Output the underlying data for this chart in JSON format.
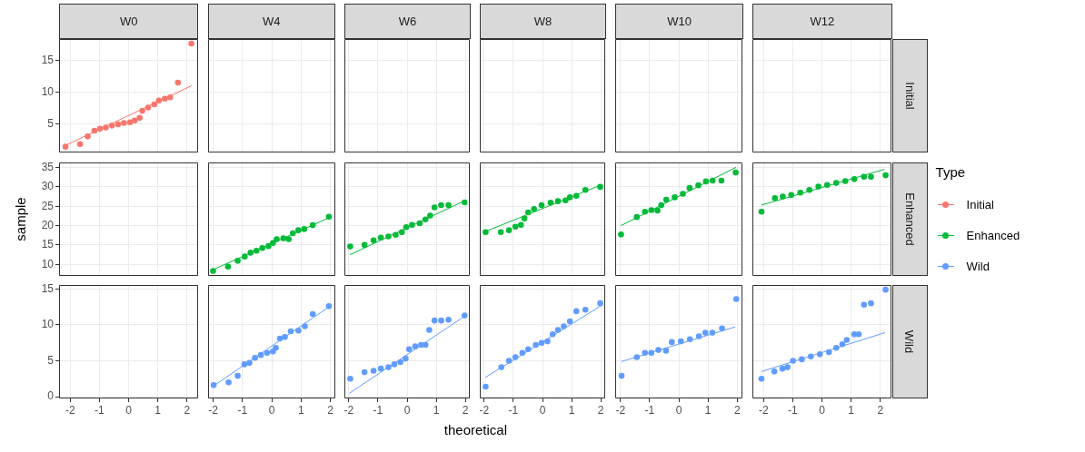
{
  "chart_data": [
    {
      "type": "scatter",
      "title": "W0",
      "xlim": [
        -2.38,
        2.38
      ],
      "xticks": [
        -2,
        -1,
        0,
        1,
        2
      ],
      "ylim": [
        0.6,
        18.3
      ],
      "yticks": [
        5,
        10,
        15
      ],
      "tick_labels": "y",
      "grid": true,
      "marker": "circle",
      "series": [
        {
          "name": "Initial",
          "color": "#f8766d",
          "x": [
            -2.16,
            -1.66,
            -1.4,
            -1.17,
            -0.98,
            -0.78,
            -0.57,
            -0.36,
            -0.16,
            0.05,
            0.21,
            0.38,
            0.47,
            0.67,
            0.88,
            1.04,
            1.24,
            1.42,
            1.69,
            2.15
          ],
          "values": [
            1.5,
            1.9,
            3.1,
            4.0,
            4.3,
            4.5,
            4.8,
            5.0,
            5.2,
            5.3,
            5.6,
            6.0,
            7.1,
            7.6,
            8.1,
            8.7,
            9.0,
            9.2,
            11.5,
            17.6
          ]
        },
        {
          "type": "line",
          "marker": "none",
          "color": "#f8766d",
          "x": [
            -2.16,
            2.15
          ],
          "values": [
            1.7,
            11.0
          ]
        }
      ]
    },
    {
      "type": "scatter",
      "title": "W4",
      "xlim": [
        -2.17,
        2.17
      ],
      "xticks": [
        -2,
        -1,
        0,
        1,
        2
      ],
      "ylim": [
        0.6,
        18.3
      ],
      "yticks": [
        5,
        10,
        15
      ],
      "tick_labels": false,
      "grid": true
    },
    {
      "type": "scatter",
      "title": "W6",
      "xlim": [
        -2.15,
        2.15
      ],
      "xticks": [
        -2,
        -1,
        0,
        1,
        2
      ],
      "ylim": [
        0.6,
        18.3
      ],
      "yticks": [
        5,
        10,
        15
      ],
      "tick_labels": false,
      "grid": true
    },
    {
      "type": "scatter",
      "title": "W8",
      "xlim": [
        -2.15,
        2.15
      ],
      "xticks": [
        -2,
        -1,
        0,
        1,
        2
      ],
      "ylim": [
        0.6,
        18.3
      ],
      "yticks": [
        5,
        10,
        15
      ],
      "tick_labels": false,
      "grid": true
    },
    {
      "type": "scatter",
      "title": "W10",
      "xlim": [
        -2.18,
        2.18
      ],
      "xticks": [
        -2,
        -1,
        0,
        1,
        2
      ],
      "ylim": [
        0.6,
        18.3
      ],
      "yticks": [
        5,
        10,
        15
      ],
      "tick_labels": false,
      "grid": true
    },
    {
      "type": "scatter",
      "title": "W12",
      "y2label": "Initial",
      "xlim": [
        -2.38,
        2.38
      ],
      "xticks": [
        -2,
        -1,
        0,
        1,
        2
      ],
      "ylim": [
        0.6,
        18.3
      ],
      "yticks": [
        5,
        10,
        15
      ],
      "tick_labels": false,
      "grid": true
    },
    {
      "type": "scatter",
      "ylabel": "sample",
      "xlim": [
        -2.38,
        2.38
      ],
      "xticks": [
        -2,
        -1,
        0,
        1,
        2
      ],
      "ylim": [
        7.0,
        36.3
      ],
      "yticks": [
        10,
        15,
        20,
        25,
        30,
        35
      ],
      "tick_labels": "y",
      "grid": true
    },
    {
      "type": "scatter",
      "xlim": [
        -2.17,
        2.17
      ],
      "xticks": [
        -2,
        -1,
        0,
        1,
        2
      ],
      "ylim": [
        7.0,
        36.3
      ],
      "yticks": [
        10,
        15,
        20,
        25,
        30,
        35
      ],
      "tick_labels": false,
      "grid": true,
      "marker": "circle",
      "series": [
        {
          "name": "Enhanced",
          "color": "#00ba38",
          "x": [
            -2.0,
            -1.49,
            -1.16,
            -0.92,
            -0.72,
            -0.52,
            -0.32,
            -0.11,
            0.04,
            0.17,
            0.4,
            0.58,
            0.72,
            0.91,
            1.11,
            1.4,
            1.95
          ],
          "values": [
            8.3,
            9.4,
            10.9,
            12.0,
            13.0,
            13.5,
            14.2,
            14.7,
            15.5,
            16.5,
            16.7,
            16.5,
            18.0,
            18.8,
            19.1,
            20.1,
            22.3
          ]
        },
        {
          "type": "line",
          "marker": "none",
          "color": "#00ba38",
          "x": [
            -2.0,
            1.95
          ],
          "values": [
            8.6,
            22.0
          ]
        }
      ]
    },
    {
      "type": "scatter",
      "xlim": [
        -2.15,
        2.15
      ],
      "xticks": [
        -2,
        -1,
        0,
        1,
        2
      ],
      "ylim": [
        7.0,
        36.3
      ],
      "yticks": [
        10,
        15,
        20,
        25,
        30,
        35
      ],
      "tick_labels": false,
      "grid": true,
      "marker": "circle",
      "series": [
        {
          "color": "#00ba38",
          "x": [
            -1.95,
            -1.46,
            -1.15,
            -0.9,
            -0.64,
            -0.39,
            -0.18,
            -0.03,
            0.17,
            0.43,
            0.63,
            0.79,
            0.94,
            1.17,
            1.42,
            1.97
          ],
          "values": [
            14.6,
            15.0,
            16.2,
            16.9,
            17.2,
            17.6,
            18.3,
            19.6,
            20.2,
            20.6,
            21.6,
            22.6,
            24.7,
            25.3,
            25.3,
            26.0
          ]
        },
        {
          "type": "line",
          "marker": "none",
          "color": "#00ba38",
          "x": [
            -1.95,
            1.97
          ],
          "values": [
            12.5,
            26.4
          ]
        }
      ]
    },
    {
      "type": "scatter",
      "xlim": [
        -2.15,
        2.15
      ],
      "xticks": [
        -2,
        -1,
        0,
        1,
        2
      ],
      "ylim": [
        7.0,
        36.3
      ],
      "yticks": [
        10,
        15,
        20,
        25,
        30,
        35
      ],
      "tick_labels": false,
      "grid": true,
      "marker": "circle",
      "series": [
        {
          "color": "#00ba38",
          "x": [
            -1.95,
            -1.43,
            -1.15,
            -0.93,
            -0.74,
            -0.62,
            -0.49,
            -0.29,
            -0.03,
            0.28,
            0.53,
            0.79,
            0.94,
            1.16,
            1.47,
            1.98
          ],
          "values": [
            18.3,
            18.3,
            18.8,
            19.7,
            20.2,
            21.8,
            23.4,
            24.3,
            25.3,
            25.9,
            26.3,
            26.5,
            27.3,
            27.7,
            29.2,
            30.0
          ]
        },
        {
          "type": "line",
          "marker": "none",
          "color": "#00ba38",
          "x": [
            -1.95,
            1.98
          ],
          "values": [
            18.5,
            30.4
          ]
        }
      ]
    },
    {
      "type": "scatter",
      "xlim": [
        -2.18,
        2.18
      ],
      "xticks": [
        -2,
        -1,
        0,
        1,
        2
      ],
      "ylim": [
        7.0,
        36.3
      ],
      "yticks": [
        10,
        15,
        20,
        25,
        30,
        35
      ],
      "tick_labels": false,
      "grid": true,
      "marker": "circle",
      "series": [
        {
          "color": "#00ba38",
          "x": [
            -1.98,
            -1.44,
            -1.16,
            -0.94,
            -0.73,
            -0.6,
            -0.43,
            -0.14,
            0.14,
            0.37,
            0.67,
            0.93,
            1.16,
            1.46,
            1.95
          ],
          "values": [
            17.7,
            22.2,
            23.6,
            24.0,
            23.9,
            25.3,
            26.7,
            27.3,
            28.2,
            29.7,
            30.4,
            31.4,
            31.6,
            31.6,
            33.7
          ]
        },
        {
          "type": "line",
          "marker": "none",
          "color": "#00ba38",
          "x": [
            -1.98,
            1.95
          ],
          "values": [
            20.0,
            35.0
          ]
        }
      ]
    },
    {
      "type": "scatter",
      "y2label": "Enhanced",
      "legend": "right",
      "legend_title": "Type",
      "xlim": [
        -2.38,
        2.38
      ],
      "xticks": [
        -2,
        -1,
        0,
        1,
        2
      ],
      "ylim": [
        7.0,
        36.3
      ],
      "yticks": [
        10,
        15,
        20,
        25,
        30,
        35
      ],
      "tick_labels": false,
      "grid": true,
      "marker": "circle",
      "series": [
        {
          "color": "#00ba38",
          "x": [
            -2.07,
            -1.61,
            -1.34,
            -1.05,
            -0.74,
            -0.43,
            -0.12,
            0.18,
            0.49,
            0.8,
            1.11,
            1.44,
            1.68,
            2.18
          ],
          "values": [
            23.6,
            27.1,
            27.5,
            27.9,
            28.5,
            29.2,
            30.1,
            30.5,
            31.0,
            31.5,
            32.0,
            32.6,
            32.6,
            33.0
          ]
        },
        {
          "type": "line",
          "marker": "none",
          "color": "#00ba38",
          "x": [
            -2.07,
            2.13
          ],
          "values": [
            25.3,
            34.5
          ]
        }
      ]
    },
    {
      "type": "scatter",
      "xlim": [
        -2.38,
        2.38
      ],
      "xticks": [
        -2,
        -1,
        0,
        1,
        2
      ],
      "ylim": [
        -0.25,
        15.55
      ],
      "yticks": [
        0,
        5,
        10,
        15
      ],
      "grid": true
    },
    {
      "type": "scatter",
      "xlim": [
        -2.17,
        2.17
      ],
      "xticks": [
        -2,
        -1,
        0,
        1,
        2
      ],
      "ylim": [
        -0.25,
        15.55
      ],
      "yticks": [
        0,
        5,
        10,
        15
      ],
      "tick_labels": "x",
      "grid": true,
      "marker": "circle",
      "series": [
        {
          "name": "Wild",
          "color": "#619cff",
          "x": [
            -1.98,
            -1.47,
            -1.16,
            -0.93,
            -0.76,
            -0.57,
            -0.37,
            -0.16,
            0.04,
            0.14,
            0.28,
            0.45,
            0.65,
            0.91,
            1.13,
            1.4,
            1.95
          ],
          "values": [
            1.6,
            2.0,
            2.9,
            4.5,
            4.7,
            5.4,
            5.8,
            6.1,
            6.3,
            6.8,
            8.1,
            8.3,
            9.1,
            9.2,
            9.8,
            11.5,
            12.6
          ]
        },
        {
          "type": "line",
          "marker": "none",
          "color": "#619cff",
          "x": [
            -1.98,
            1.95
          ],
          "values": [
            1.5,
            12.5
          ]
        }
      ]
    },
    {
      "type": "scatter",
      "xlabel": "theoretical",
      "xlim": [
        -2.15,
        2.15
      ],
      "xticks": [
        -2,
        -1,
        0,
        1,
        2
      ],
      "ylim": [
        -0.25,
        15.55
      ],
      "yticks": [
        0,
        5,
        10,
        15
      ],
      "tick_labels": "x",
      "grid": true,
      "marker": "circle",
      "series": [
        {
          "color": "#619cff",
          "x": [
            -1.95,
            -1.46,
            -1.15,
            -0.9,
            -0.64,
            -0.44,
            -0.23,
            -0.05,
            0.07,
            0.28,
            0.48,
            0.63,
            0.76,
            0.94,
            1.17,
            1.42,
            1.97
          ],
          "values": [
            2.5,
            3.4,
            3.6,
            3.9,
            4.1,
            4.5,
            4.8,
            5.3,
            6.6,
            7.0,
            7.2,
            7.2,
            9.3,
            10.6,
            10.6,
            10.7,
            11.3
          ]
        },
        {
          "type": "line",
          "marker": "none",
          "color": "#619cff",
          "x": [
            -1.97,
            1.97
          ],
          "values": [
            0.5,
            11.2
          ]
        }
      ]
    },
    {
      "type": "scatter",
      "xlim": [
        -2.15,
        2.15
      ],
      "xticks": [
        -2,
        -1,
        0,
        1,
        2
      ],
      "ylim": [
        -0.25,
        15.55
      ],
      "yticks": [
        0,
        5,
        10,
        15
      ],
      "tick_labels": "x",
      "grid": true,
      "marker": "circle",
      "series": [
        {
          "color": "#619cff",
          "x": [
            -1.95,
            -1.41,
            -1.15,
            -0.93,
            -0.69,
            -0.49,
            -0.23,
            -0.03,
            0.17,
            0.35,
            0.53,
            0.73,
            0.94,
            1.16,
            1.47,
            1.98
          ],
          "values": [
            1.4,
            4.1,
            5.0,
            5.5,
            6.1,
            6.6,
            7.2,
            7.5,
            7.7,
            8.7,
            9.3,
            9.8,
            10.5,
            11.9,
            12.1,
            13.0
          ]
        },
        {
          "type": "line",
          "marker": "none",
          "color": "#619cff",
          "x": [
            -1.95,
            1.98
          ],
          "values": [
            2.7,
            12.6
          ]
        }
      ]
    },
    {
      "type": "scatter",
      "xlim": [
        -2.18,
        2.18
      ],
      "xticks": [
        -2,
        -1,
        0,
        1,
        2
      ],
      "ylim": [
        -0.25,
        15.55
      ],
      "yticks": [
        0,
        5,
        10,
        15
      ],
      "tick_labels": "x",
      "grid": true,
      "marker": "circle",
      "series": [
        {
          "color": "#619cff",
          "x": [
            -1.96,
            -1.44,
            -1.16,
            -0.94,
            -0.7,
            -0.44,
            -0.24,
            0.07,
            0.38,
            0.69,
            0.91,
            1.15,
            1.48,
            1.97
          ],
          "values": [
            2.9,
            5.5,
            6.1,
            6.1,
            6.5,
            6.4,
            7.6,
            7.7,
            8.0,
            8.4,
            8.9,
            8.9,
            9.5,
            13.6
          ]
        },
        {
          "type": "line",
          "marker": "none",
          "color": "#619cff",
          "x": [
            -1.96,
            1.92
          ],
          "values": [
            4.9,
            9.7
          ]
        }
      ]
    },
    {
      "type": "scatter",
      "y2label": "Wild",
      "xlim": [
        -2.38,
        2.38
      ],
      "xticks": [
        -2,
        -1,
        0,
        1,
        2
      ],
      "ylim": [
        -0.25,
        15.55
      ],
      "yticks": [
        0,
        5,
        10,
        15
      ],
      "tick_labels": "x",
      "grid": true,
      "marker": "circle",
      "series": [
        {
          "color": "#619cff",
          "x": [
            -2.07,
            -1.63,
            -1.35,
            -1.18,
            -0.99,
            -0.69,
            -0.38,
            -0.07,
            0.24,
            0.49,
            0.7,
            0.85,
            1.11,
            1.26,
            1.44,
            1.68,
            2.18
          ],
          "values": [
            2.5,
            3.5,
            3.9,
            4.1,
            5.0,
            5.2,
            5.6,
            5.9,
            6.2,
            6.8,
            7.3,
            7.9,
            8.7,
            8.7,
            12.8,
            13.0,
            14.9
          ]
        },
        {
          "type": "line",
          "marker": "none",
          "color": "#619cff",
          "x": [
            -2.07,
            2.15
          ],
          "values": [
            3.5,
            8.9
          ]
        }
      ]
    }
  ]
}
